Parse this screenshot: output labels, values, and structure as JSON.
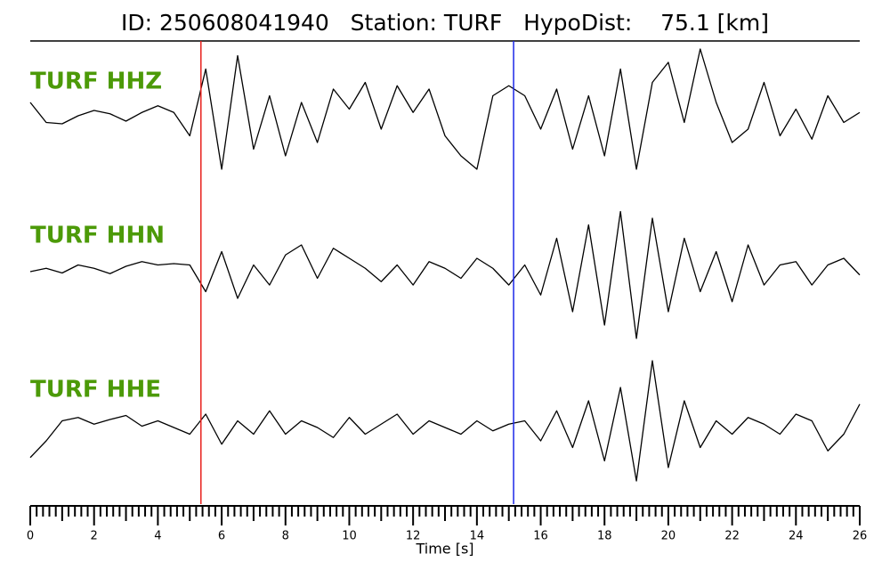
{
  "chart_data": {
    "type": "line",
    "title": "ID: 250608041940   Station: TURF   HypoDist:    75.1 [km]",
    "xlabel": "Time [s]",
    "xlim": [
      0,
      26
    ],
    "ylim": [
      -1,
      1
    ],
    "xticks": [
      0,
      2,
      4,
      6,
      8,
      10,
      12,
      14,
      16,
      18,
      20,
      22,
      24,
      26
    ],
    "xminorticks": [
      0.2,
      0.4,
      0.6,
      0.8,
      1,
      1.2,
      1.4,
      1.6,
      1.8,
      2.2,
      2.4,
      2.6,
      2.8,
      3,
      3.2,
      3.4,
      3.6,
      3.8,
      4.2,
      4.4,
      4.6,
      4.8,
      5,
      5.2,
      5.4,
      5.6,
      5.8,
      6.2,
      6.4,
      6.6,
      6.8,
      7,
      7.2,
      7.4,
      7.6,
      7.8,
      8.2,
      8.4,
      8.6,
      8.8,
      9,
      9.2,
      9.4,
      9.6,
      9.8,
      10.2,
      10.4,
      10.6,
      10.8,
      11,
      11.2,
      11.4,
      11.6,
      11.8,
      12.2,
      12.4,
      12.6,
      12.8,
      13,
      13.2,
      13.4,
      13.6,
      13.8,
      14.2,
      14.4,
      14.6,
      14.8,
      15,
      15.2,
      15.4,
      15.6,
      15.8,
      16.2,
      16.4,
      16.6,
      16.8,
      17,
      17.2,
      17.4,
      17.6,
      17.8,
      18.2,
      18.4,
      18.6,
      18.8,
      19,
      19.2,
      19.4,
      19.6,
      19.8,
      20.2,
      20.4,
      20.6,
      20.8,
      21,
      21.2,
      21.4,
      21.6,
      21.8,
      22.2,
      22.4,
      22.6,
      22.8,
      23,
      23.2,
      23.4,
      23.6,
      23.8,
      24.2,
      24.4,
      24.6,
      24.8,
      25,
      25.2,
      25.4,
      25.6,
      25.8
    ],
    "picks": [
      {
        "x": 5.35,
        "color": "#e8201c"
      },
      {
        "x": 15.15,
        "color": "#1c28e8"
      }
    ],
    "label_color": "#4c9a08",
    "x": [
      0,
      0.5,
      1,
      1.5,
      2,
      2.5,
      3,
      3.5,
      4,
      4.5,
      5,
      5.5,
      6,
      6.5,
      7,
      7.5,
      8,
      8.5,
      9,
      9.5,
      10,
      10.5,
      11,
      11.5,
      12,
      12.5,
      13,
      13.5,
      14,
      14.5,
      15,
      15.5,
      16,
      16.5,
      17,
      17.5,
      18,
      18.5,
      19,
      19.5,
      20,
      20.5,
      21,
      21.5,
      22,
      22.5,
      23,
      23.5,
      24,
      24.5,
      25,
      25.5,
      26
    ],
    "series": [
      {
        "name": "TURF HHZ",
        "color": "#000000",
        "values": [
          0.2,
          -0.1,
          -0.12,
          0,
          0.08,
          0.03,
          -0.08,
          0.05,
          0.15,
          0.05,
          -0.3,
          0.7,
          -0.8,
          0.9,
          -0.5,
          0.3,
          -0.6,
          0.2,
          -0.4,
          0.4,
          0.1,
          0.5,
          -0.2,
          0.45,
          0.05,
          0.4,
          -0.3,
          -0.6,
          -0.8,
          0.3,
          0.45,
          0.3,
          -0.2,
          0.4,
          -0.5,
          0.3,
          -0.6,
          0.7,
          -0.8,
          0.5,
          0.8,
          -0.1,
          1.0,
          0.2,
          -0.4,
          -0.2,
          0.5,
          -0.3,
          0.1,
          -0.35,
          0.3,
          -0.1,
          0.05
        ]
      },
      {
        "name": "TURF HHN",
        "color": "#000000",
        "values": [
          0,
          0.05,
          -0.02,
          0.1,
          0.05,
          -0.03,
          0.08,
          0.15,
          0.1,
          0.12,
          0.1,
          -0.3,
          0.3,
          -0.4,
          0.1,
          -0.2,
          0.25,
          0.4,
          -0.1,
          0.35,
          0.2,
          0.05,
          -0.15,
          0.1,
          -0.2,
          0.15,
          0.05,
          -0.1,
          0.2,
          0.05,
          -0.2,
          0.1,
          -0.35,
          0.5,
          -0.6,
          0.7,
          -0.8,
          0.9,
          -1.0,
          0.8,
          -0.6,
          0.5,
          -0.3,
          0.3,
          -0.45,
          0.4,
          -0.2,
          0.1,
          0.15,
          -0.2,
          0.1,
          0.2,
          -0.05
        ]
      },
      {
        "name": "TURF HHE",
        "color": "#000000",
        "values": [
          -0.45,
          -0.2,
          0.1,
          0.15,
          0.05,
          0.12,
          0.18,
          0.02,
          0.1,
          0.0,
          -0.1,
          0.2,
          -0.25,
          0.1,
          -0.1,
          0.25,
          -0.1,
          0.1,
          0.0,
          -0.15,
          0.15,
          -0.1,
          0.05,
          0.2,
          -0.1,
          0.1,
          0.0,
          -0.1,
          0.1,
          -0.05,
          0.05,
          0.1,
          -0.2,
          0.25,
          -0.3,
          0.4,
          -0.5,
          0.6,
          -0.8,
          1.0,
          -0.6,
          0.4,
          -0.3,
          0.1,
          -0.1,
          0.15,
          0.05,
          -0.1,
          0.2,
          0.1,
          -0.35,
          -0.1,
          0.35
        ]
      }
    ]
  }
}
